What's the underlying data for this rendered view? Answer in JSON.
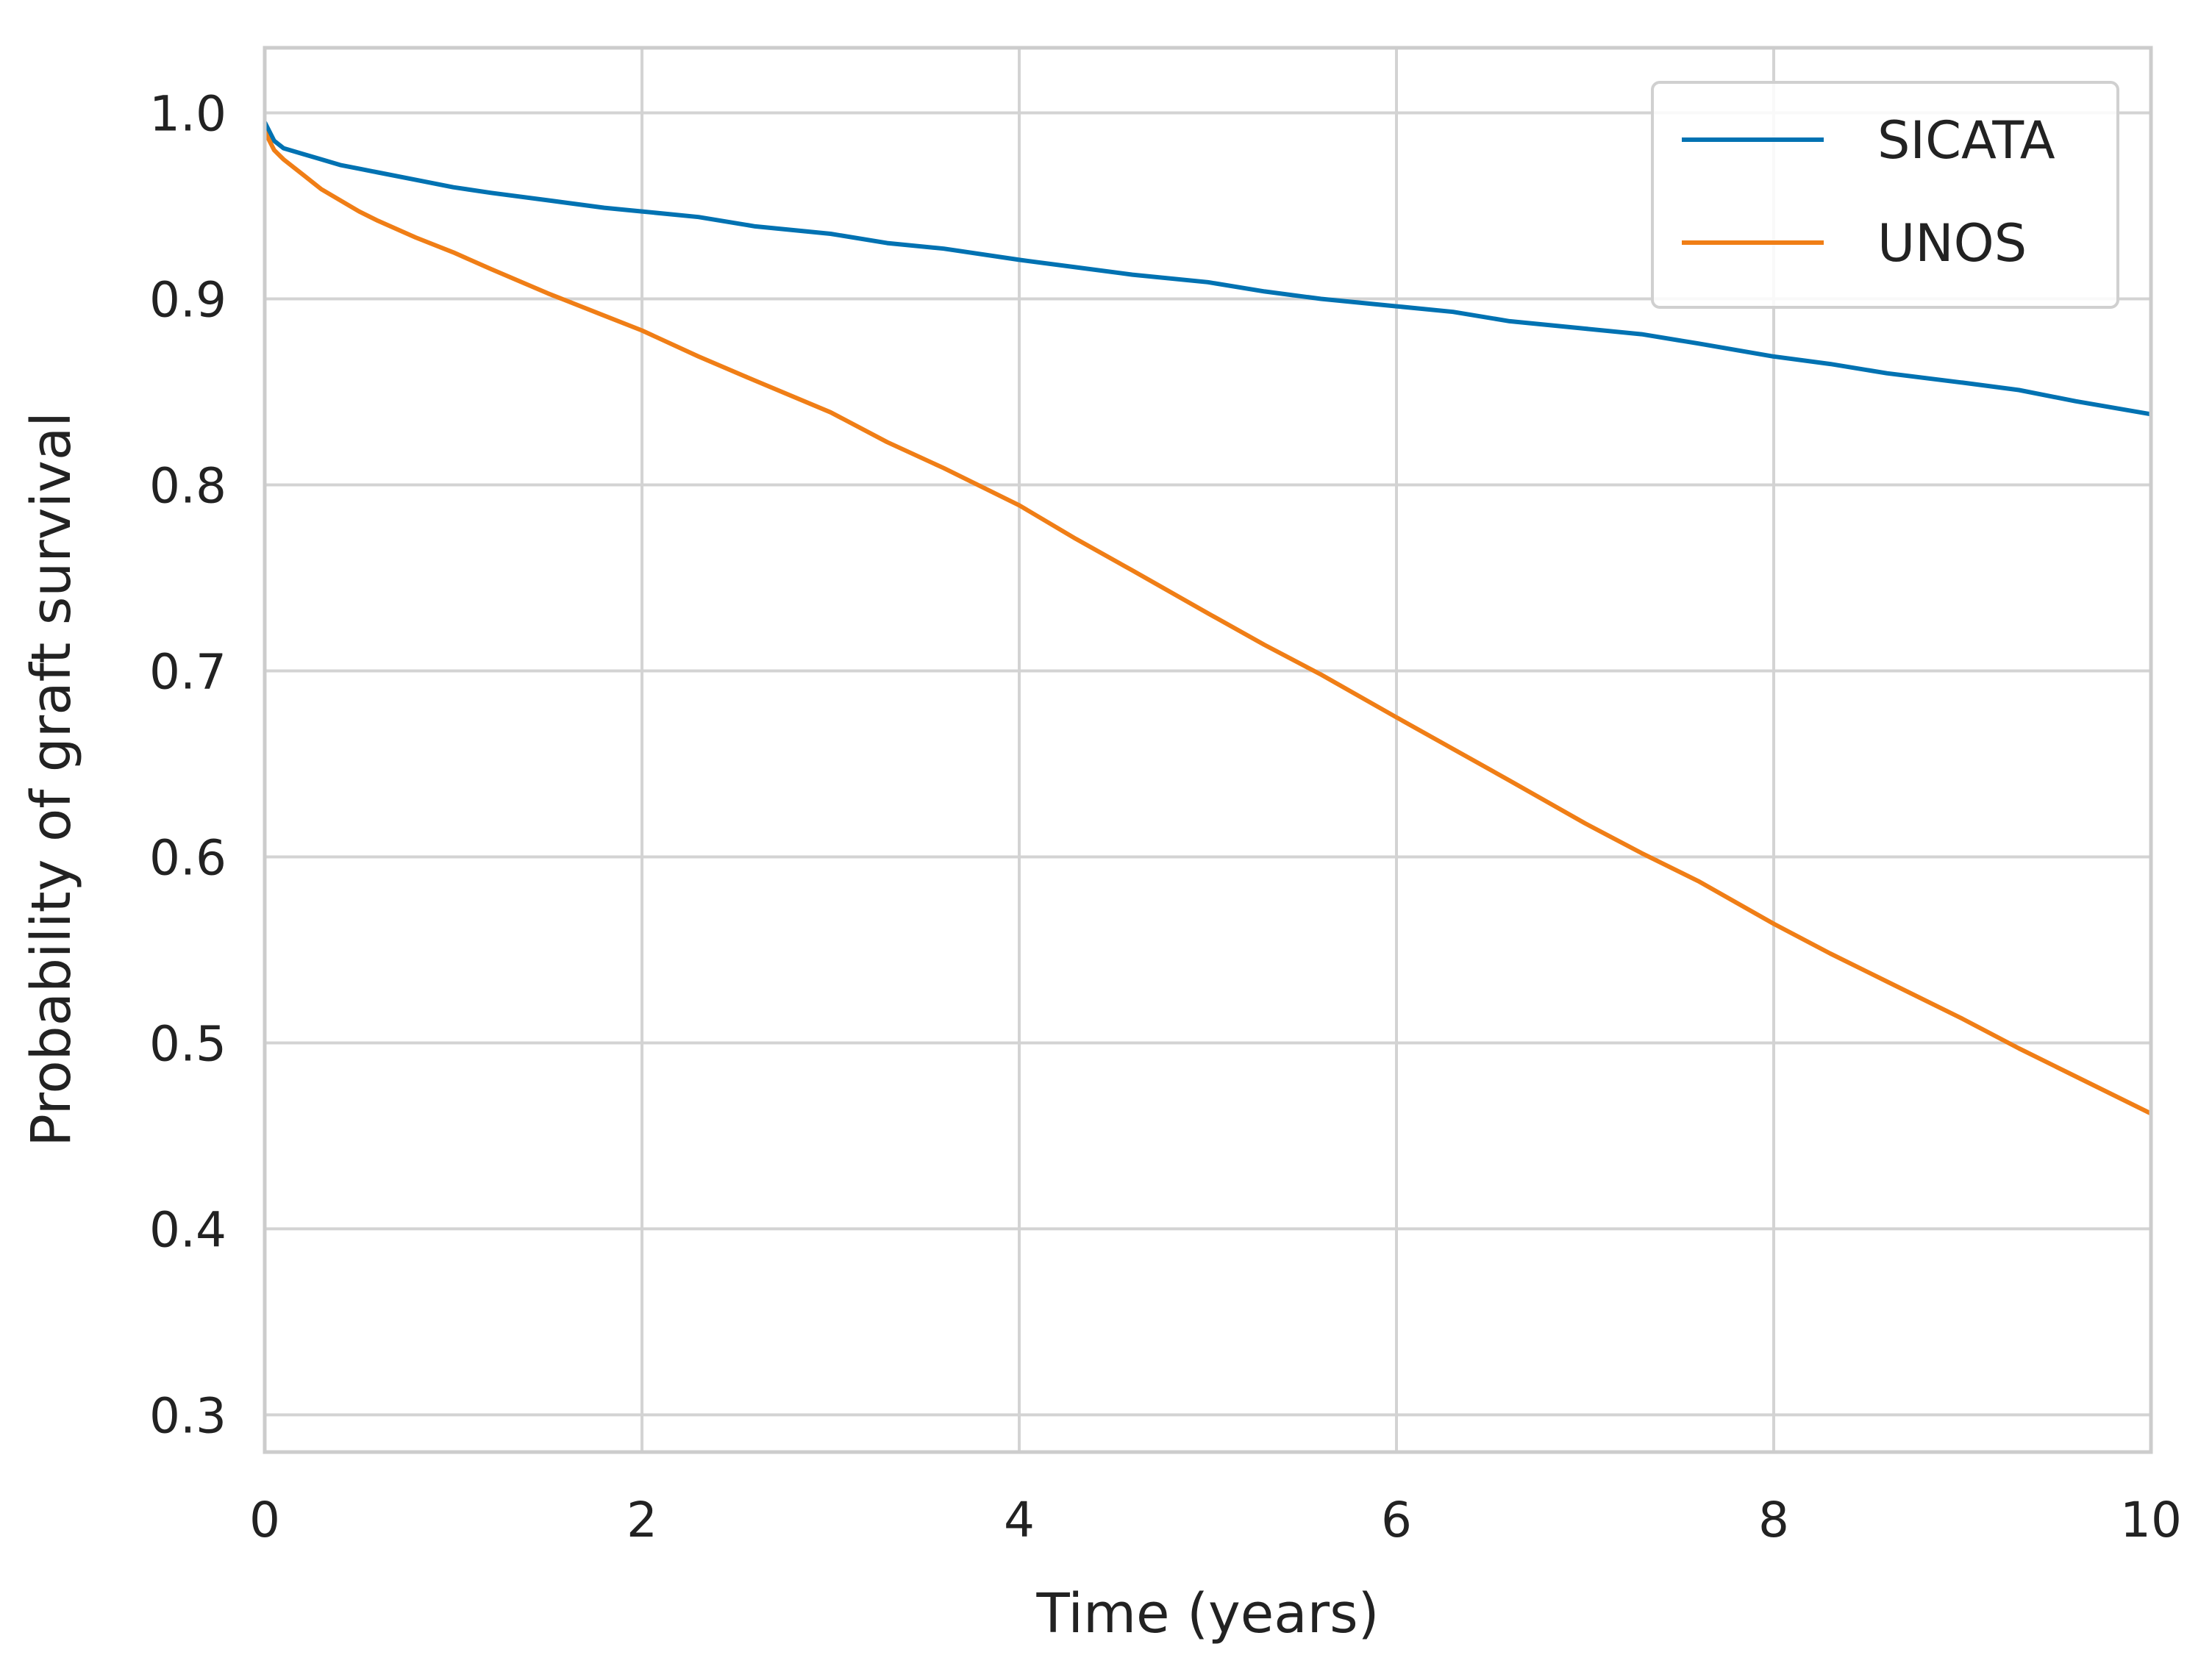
{
  "chart_data": {
    "type": "line",
    "title": "",
    "xlabel": "Time (years)",
    "ylabel": "Probability of graft survival",
    "xlim": [
      0,
      10
    ],
    "ylim": [
      0.28,
      1.035
    ],
    "xticks": [
      0,
      2,
      4,
      6,
      8,
      10
    ],
    "yticks": [
      0.3,
      0.4,
      0.5,
      0.6,
      0.7,
      0.8,
      0.9,
      1.0
    ],
    "xtick_labels": [
      "0",
      "2",
      "4",
      "6",
      "8",
      "10"
    ],
    "ytick_labels": [
      "0.3",
      "0.4",
      "0.5",
      "0.6",
      "0.7",
      "0.8",
      "0.9",
      "1.0"
    ],
    "grid": true,
    "legend_position": "top-right",
    "series": [
      {
        "name": "SICATA",
        "color": "#0072B2",
        "x": [
          0,
          0.05,
          0.1,
          0.2,
          0.3,
          0.4,
          0.5,
          0.6,
          0.8,
          1.0,
          1.2,
          1.5,
          1.8,
          2.0,
          2.3,
          2.6,
          3.0,
          3.3,
          3.6,
          4.0,
          4.3,
          4.6,
          5.0,
          5.3,
          5.6,
          6.0,
          6.3,
          6.6,
          7.0,
          7.3,
          7.6,
          8.0,
          8.3,
          8.6,
          9.0,
          9.3,
          9.6,
          10.0
        ],
        "y": [
          0.995,
          0.985,
          0.981,
          0.978,
          0.975,
          0.972,
          0.97,
          0.968,
          0.964,
          0.96,
          0.957,
          0.953,
          0.949,
          0.947,
          0.944,
          0.939,
          0.935,
          0.93,
          0.927,
          0.921,
          0.917,
          0.913,
          0.909,
          0.904,
          0.9,
          0.896,
          0.893,
          0.888,
          0.884,
          0.881,
          0.876,
          0.869,
          0.865,
          0.86,
          0.855,
          0.851,
          0.845,
          0.838
        ]
      },
      {
        "name": "UNOS",
        "color": "#F07E16",
        "x": [
          0,
          0.05,
          0.1,
          0.2,
          0.3,
          0.4,
          0.5,
          0.6,
          0.8,
          1.0,
          1.2,
          1.5,
          1.8,
          2.0,
          2.3,
          2.6,
          3.0,
          3.3,
          3.6,
          4.0,
          4.3,
          4.6,
          5.0,
          5.3,
          5.6,
          6.0,
          6.3,
          6.6,
          7.0,
          7.3,
          7.6,
          8.0,
          8.3,
          8.6,
          9.0,
          9.3,
          9.6,
          10.0
        ],
        "y": [
          0.99,
          0.98,
          0.975,
          0.967,
          0.959,
          0.953,
          0.947,
          0.942,
          0.933,
          0.925,
          0.916,
          0.903,
          0.891,
          0.883,
          0.869,
          0.856,
          0.839,
          0.823,
          0.809,
          0.789,
          0.771,
          0.754,
          0.731,
          0.714,
          0.698,
          0.675,
          0.658,
          0.641,
          0.618,
          0.602,
          0.587,
          0.564,
          0.548,
          0.533,
          0.513,
          0.497,
          0.482,
          0.462
        ]
      }
    ]
  }
}
